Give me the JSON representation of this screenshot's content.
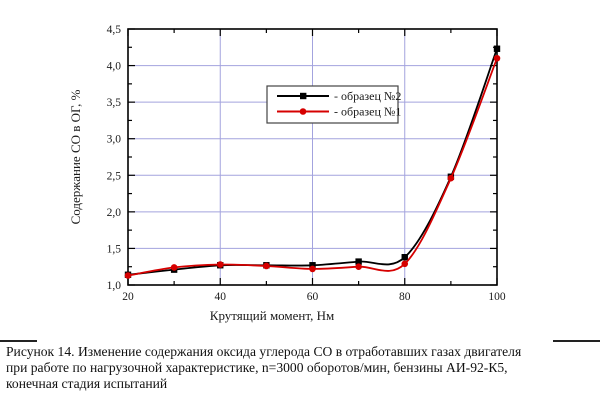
{
  "figure": {
    "caption_lines": [
      "Рисунок 14. Изменение содержания оксида углерода СО в отработавших газах двигателя",
      "при работе по нагрузочной характеристике, n=3000 оборотов/мин, бензины АИ-92-К5,",
      "конечная стадия испытаний"
    ]
  },
  "chart_data": {
    "type": "line",
    "x": [
      20,
      30,
      40,
      50,
      60,
      70,
      80,
      90,
      100
    ],
    "series": [
      {
        "name": "образец №2",
        "color": "#000000",
        "marker": "square",
        "values": [
          1.14,
          1.21,
          1.27,
          1.27,
          1.27,
          1.32,
          1.38,
          2.48,
          4.23
        ]
      },
      {
        "name": "образец №1",
        "color": "#d60000",
        "marker": "circle",
        "values": [
          1.13,
          1.24,
          1.28,
          1.26,
          1.22,
          1.25,
          1.29,
          2.46,
          4.1
        ]
      }
    ],
    "title": "",
    "xlabel": "Крутящий момент, Нм",
    "ylabel": "Содержание СО в ОГ, %",
    "xlim": [
      20,
      100
    ],
    "ylim": [
      1.0,
      4.5
    ],
    "x_major_ticks": [
      20,
      40,
      60,
      80,
      100
    ],
    "x_minor_ticks": [
      30,
      50,
      70,
      90
    ],
    "x_tick_labels": [
      "20",
      "40",
      "60",
      "80",
      "100"
    ],
    "y_major_ticks": [
      1.0,
      1.5,
      2.0,
      2.5,
      3.0,
      3.5,
      4.0,
      4.5
    ],
    "y_minor_ticks": [
      1.25,
      1.75,
      2.25,
      2.75,
      3.25,
      3.75,
      4.25
    ],
    "y_tick_labels": [
      "1,0",
      "1,5",
      "2,0",
      "2,5",
      "3,0",
      "3,5",
      "4,0",
      "4,5"
    ],
    "grid": true,
    "grid_x": [
      40,
      60,
      80
    ],
    "grid_y": [
      1.5,
      2.0,
      2.5,
      3.0,
      3.5,
      4.0
    ],
    "grid_color": "#a3a3de",
    "frame_color": "#000000",
    "legend": {
      "position": "inside-top-center",
      "prefix": "- ",
      "entries": [
        "образец №2",
        "образец №1"
      ]
    }
  }
}
